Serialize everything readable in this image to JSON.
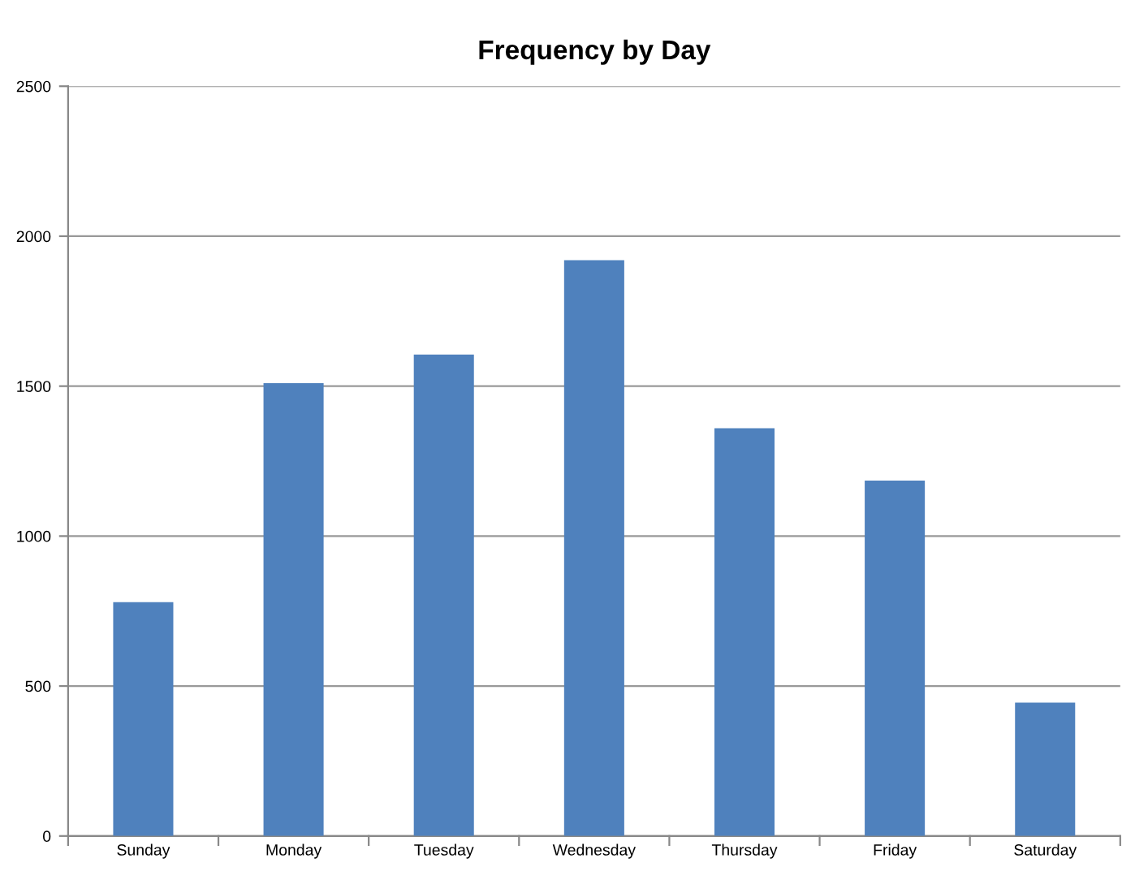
{
  "chart_data": {
    "type": "bar",
    "title": "Frequency by Day",
    "categories": [
      "Sunday",
      "Monday",
      "Tuesday",
      "Wednesday",
      "Thursday",
      "Friday",
      "Saturday"
    ],
    "values": [
      780,
      1510,
      1605,
      1920,
      1360,
      1185,
      445
    ],
    "color": "#4f81bd",
    "ylim": [
      0,
      2500
    ],
    "yticks": [
      0,
      500,
      1000,
      1500,
      2000,
      2500
    ],
    "grid": "y"
  }
}
